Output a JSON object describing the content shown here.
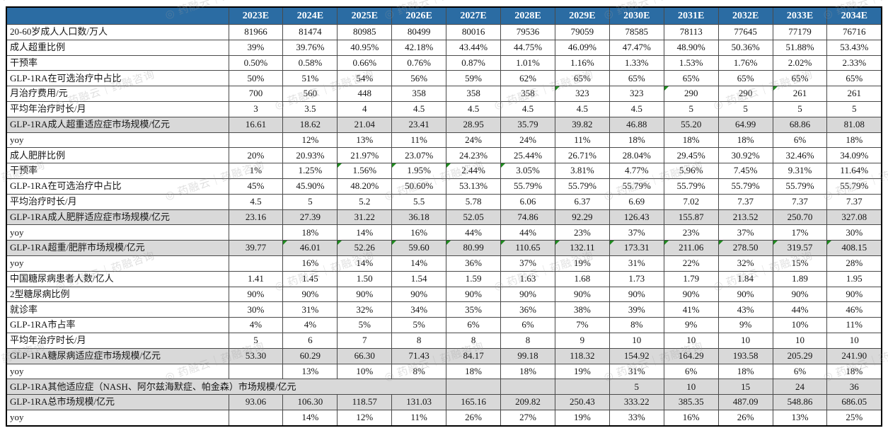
{
  "watermark": {
    "text": "药融云｜药融咨询",
    "logo_glyph": "◎"
  },
  "colors": {
    "header_bg": "#2B6CA3",
    "header_text": "#FFFFFF",
    "shaded_row_bg": "#D9D9D9",
    "flag_triangle": "#1E8C1E",
    "grid_border": "#4A4A4A"
  },
  "table": {
    "header": {
      "corner_label": "",
      "years": [
        "2023E",
        "2024E",
        "2025E",
        "2026E",
        "2027E",
        "2028E",
        "2029E",
        "2030E",
        "2031E",
        "2032E",
        "2033E",
        "2034E"
      ]
    },
    "rows": [
      {
        "label": "20-60岁成人人口数/万人",
        "shaded": false,
        "values": [
          "81966",
          "81474",
          "80985",
          "80499",
          "80016",
          "79536",
          "79059",
          "78585",
          "78113",
          "77645",
          "77179",
          "76716"
        ]
      },
      {
        "label": "成人超重比例",
        "shaded": false,
        "values": [
          "39%",
          "39.76%",
          "40.95%",
          "42.18%",
          "43.44%",
          "44.75%",
          "46.09%",
          "47.47%",
          "48.90%",
          "50.36%",
          "51.88%",
          "53.43%"
        ]
      },
      {
        "label": "干预率",
        "shaded": false,
        "values": [
          "0.50%",
          "0.58%",
          "0.66%",
          "0.76%",
          "0.87%",
          "1.01%",
          "1.16%",
          "1.33%",
          "1.53%",
          "1.76%",
          "2.02%",
          "2.33%"
        ]
      },
      {
        "label": "GLP-1RA在可选治疗中占比",
        "shaded": false,
        "values": [
          "50%",
          "51%",
          "54%",
          "56%",
          "59%",
          "62%",
          "65%",
          "65%",
          "65%",
          "65%",
          "65%",
          "65%"
        ]
      },
      {
        "label": "月治疗费用/元",
        "shaded": false,
        "values": [
          "700",
          "560",
          "448",
          "358",
          "358",
          "358",
          "323",
          "323",
          "290",
          "290",
          "261",
          "261"
        ],
        "flags": [
          6,
          8,
          10
        ]
      },
      {
        "label": "平均年治疗时长/月",
        "shaded": false,
        "values": [
          "3",
          "3.5",
          "4",
          "4.5",
          "4.5",
          "4.5",
          "4.5",
          "4.5",
          "5",
          "5",
          "5",
          "5"
        ]
      },
      {
        "label": "GLP-1RA成人超重适应症市场规模/亿元",
        "shaded": true,
        "values": [
          "16.61",
          "18.62",
          "21.04",
          "23.41",
          "28.95",
          "35.79",
          "39.82",
          "46.88",
          "55.20",
          "64.99",
          "68.86",
          "81.08"
        ]
      },
      {
        "label": "yoy",
        "shaded": false,
        "values": [
          "",
          "12%",
          "13%",
          "11%",
          "24%",
          "24%",
          "11%",
          "18%",
          "18%",
          "18%",
          "6%",
          "18%"
        ]
      },
      {
        "label": "成人肥胖比例",
        "shaded": false,
        "values": [
          "20%",
          "20.93%",
          "21.97%",
          "23.07%",
          "24.23%",
          "25.44%",
          "26.71%",
          "28.04%",
          "29.45%",
          "30.92%",
          "32.46%",
          "34.09%"
        ]
      },
      {
        "label": "干预率",
        "shaded": false,
        "values": [
          "1%",
          "1.25%",
          "1.56%",
          "1.95%",
          "2.44%",
          "3.05%",
          "3.81%",
          "4.77%",
          "5.96%",
          "7.45%",
          "9.31%",
          "11.64%"
        ],
        "flags": [
          2,
          3,
          4,
          5
        ]
      },
      {
        "label": "GLP-1RA在可选治疗中占比",
        "shaded": false,
        "values": [
          "45%",
          "45.90%",
          "48.20%",
          "50.60%",
          "53.13%",
          "55.79%",
          "55.79%",
          "55.79%",
          "55.79%",
          "55.79%",
          "55.79%",
          "55.79%"
        ]
      },
      {
        "label": "平均治疗时长/月",
        "shaded": false,
        "values": [
          "4.5",
          "5",
          "5.2",
          "5.5",
          "5.78",
          "6.06",
          "6.37",
          "6.69",
          "7.02",
          "7.37",
          "7.37",
          "7.37"
        ]
      },
      {
        "label": "GLP-1RA成人肥胖适应症市场规模/亿元",
        "shaded": true,
        "values": [
          "23.16",
          "27.39",
          "31.22",
          "36.18",
          "52.05",
          "74.86",
          "92.29",
          "126.43",
          "155.87",
          "213.52",
          "250.70",
          "327.08"
        ]
      },
      {
        "label": "yoy",
        "shaded": false,
        "values": [
          "",
          "18%",
          "14%",
          "16%",
          "44%",
          "44%",
          "23%",
          "37%",
          "23%",
          "37%",
          "17%",
          "30%"
        ]
      },
      {
        "label": "GLP-1RA超重/肥胖市场规模/亿元",
        "shaded": true,
        "values": [
          "39.77",
          "46.01",
          "52.26",
          "59.60",
          "80.99",
          "110.65",
          "132.11",
          "173.31",
          "211.06",
          "278.50",
          "319.57",
          "408.15"
        ],
        "flags": [
          1,
          2,
          3,
          4,
          5,
          6,
          7,
          8,
          9,
          10,
          11
        ]
      },
      {
        "label": "yoy",
        "shaded": false,
        "values": [
          "",
          "16%",
          "14%",
          "14%",
          "36%",
          "37%",
          "19%",
          "31%",
          "22%",
          "32%",
          "15%",
          "28%"
        ]
      },
      {
        "label": "中国糖尿病患者人数/亿人",
        "shaded": false,
        "values": [
          "1.41",
          "1.45",
          "1.50",
          "1.54",
          "1.59",
          "1.63",
          "1.68",
          "1.73",
          "1.79",
          "1.84",
          "1.89",
          "1.95"
        ]
      },
      {
        "label": "2型糖尿病比例",
        "shaded": false,
        "values": [
          "90%",
          "90%",
          "90%",
          "90%",
          "90%",
          "90%",
          "90%",
          "90%",
          "90%",
          "90%",
          "90%",
          "90%"
        ]
      },
      {
        "label": "就诊率",
        "shaded": false,
        "values": [
          "30%",
          "31%",
          "32%",
          "34%",
          "35%",
          "36%",
          "38%",
          "39%",
          "41%",
          "43%",
          "44%",
          "46%"
        ]
      },
      {
        "label": "GLP-1RA市占率",
        "shaded": false,
        "values": [
          "4%",
          "4%",
          "5%",
          "5%",
          "6%",
          "6%",
          "7%",
          "8%",
          "9%",
          "9%",
          "10%",
          "11%"
        ]
      },
      {
        "label": "平均年治疗时长/月",
        "shaded": false,
        "values": [
          "5",
          "6",
          "7",
          "8",
          "8",
          "8",
          "9",
          "10",
          "10",
          "10",
          "10",
          "10"
        ]
      },
      {
        "label": "GLP-1RA糖尿病适应症市场规模/亿元",
        "shaded": true,
        "values": [
          "53.30",
          "60.29",
          "66.30",
          "71.43",
          "84.17",
          "99.18",
          "118.32",
          "154.92",
          "164.29",
          "193.58",
          "205.29",
          "241.90"
        ]
      },
      {
        "label": "yoy",
        "shaded": false,
        "values": [
          "",
          "13%",
          "10%",
          "8%",
          "18%",
          "18%",
          "19%",
          "31%",
          "6%",
          "18%",
          "6%",
          "18%"
        ]
      },
      {
        "label": "GLP-1RA其他适应症（NASH、阿尔兹海默症、帕金森）市场规模/亿元",
        "shaded": true,
        "type": "span",
        "label_colspan": 5,
        "empty_cells": 3,
        "values": [
          "5",
          "10",
          "15",
          "24",
          "36"
        ]
      },
      {
        "label": "GLP-1RA总市场规模/亿元",
        "shaded": true,
        "values": [
          "93.06",
          "106.30",
          "118.57",
          "131.03",
          "165.16",
          "209.82",
          "250.43",
          "333.22",
          "385.35",
          "487.09",
          "548.86",
          "686.05"
        ]
      },
      {
        "label": "yoy",
        "shaded": false,
        "values": [
          "",
          "14%",
          "12%",
          "11%",
          "26%",
          "27%",
          "19%",
          "33%",
          "16%",
          "26%",
          "13%",
          "25%"
        ]
      }
    ]
  }
}
